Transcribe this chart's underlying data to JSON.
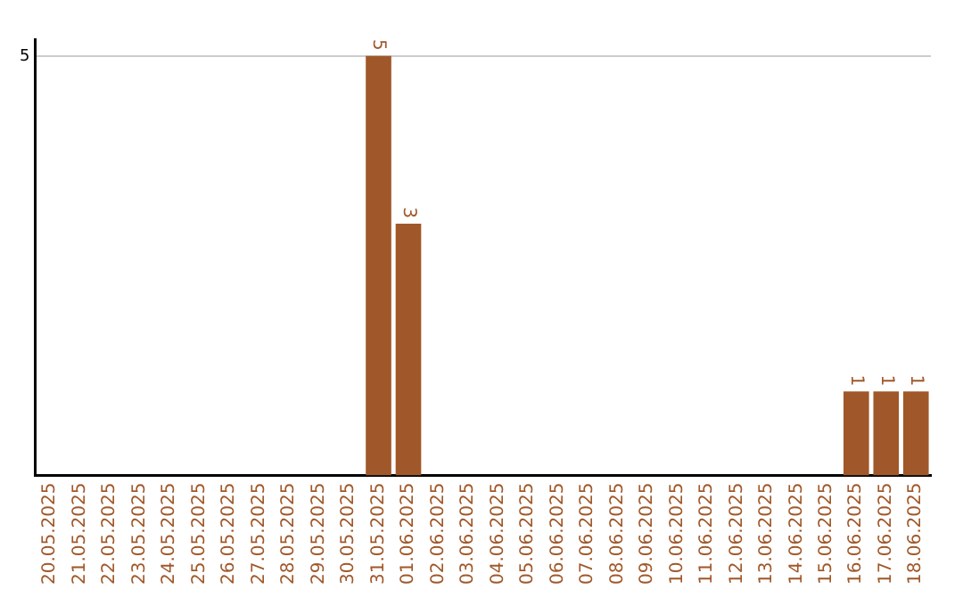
{
  "chart_data": {
    "type": "bar",
    "categories": [
      "20.05.2025",
      "21.05.2025",
      "22.05.2025",
      "23.05.2025",
      "24.05.2025",
      "25.05.2025",
      "26.05.2025",
      "27.05.2025",
      "28.05.2025",
      "29.05.2025",
      "30.05.2025",
      "31.05.2025",
      "01.06.2025",
      "02.06.2025",
      "03.06.2025",
      "04.06.2025",
      "05.06.2025",
      "06.06.2025",
      "07.06.2025",
      "08.06.2025",
      "09.06.2025",
      "10.06.2025",
      "11.06.2025",
      "12.06.2025",
      "13.06.2025",
      "14.06.2025",
      "15.06.2025",
      "16.06.2025",
      "17.06.2025",
      "18.06.2025"
    ],
    "values": [
      0,
      0,
      0,
      0,
      0,
      0,
      0,
      0,
      0,
      0,
      0,
      5,
      3,
      0,
      0,
      0,
      0,
      0,
      0,
      0,
      0,
      0,
      0,
      0,
      0,
      0,
      0,
      1,
      1,
      1
    ],
    "value_labels": [
      null,
      null,
      null,
      null,
      null,
      null,
      null,
      null,
      null,
      null,
      null,
      "5",
      "3",
      null,
      null,
      null,
      null,
      null,
      null,
      null,
      null,
      null,
      null,
      null,
      null,
      null,
      null,
      "1",
      "1",
      "1"
    ],
    "color": "#a0582a",
    "ylim": [
      0,
      5.2
    ],
    "yticks": [
      5
    ],
    "grid": "y",
    "legend": false
  }
}
